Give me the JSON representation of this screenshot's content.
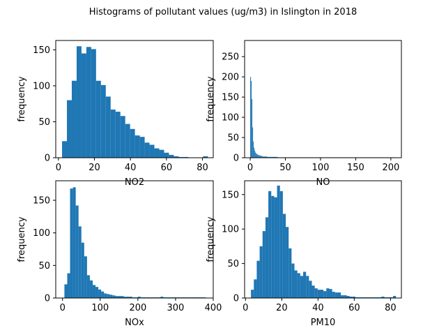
{
  "figure_title": "Histograms of pollutant values (ug/m3) in Islington in 2018",
  "chart_data": [
    {
      "type": "bar",
      "subtype": "histogram",
      "xlabel": "NO2",
      "ylabel": "frequency",
      "xlim": [
        -1.5,
        86
      ],
      "ylim": [
        0,
        163
      ],
      "xticks": [
        0,
        20,
        40,
        60,
        80
      ],
      "yticks": [
        0,
        50,
        100,
        150
      ],
      "bin_edges": [
        2,
        4.7,
        7.4,
        10.1,
        12.8,
        15.5,
        18.2,
        20.9,
        23.6,
        26.3,
        29,
        31.7,
        34.4,
        37.1,
        39.8,
        42.5,
        45.2,
        47.9,
        50.6,
        53.3,
        56,
        58.7,
        61.4,
        64.1,
        66.8,
        69.5,
        72.2,
        74.9,
        77.6,
        80.3,
        83
      ],
      "values": [
        23,
        80,
        107,
        155,
        145,
        154,
        151,
        107,
        101,
        85,
        67,
        64,
        58,
        47,
        40,
        31,
        29,
        21,
        18,
        13,
        11,
        7,
        4,
        2,
        1,
        1,
        0,
        0,
        0,
        2
      ]
    },
    {
      "type": "bar",
      "subtype": "histogram",
      "xlabel": "NO",
      "ylabel": "frequency",
      "xlim": [
        -8,
        215
      ],
      "ylim": [
        0,
        290
      ],
      "xticks": [
        0,
        50,
        100,
        150,
        200
      ],
      "yticks": [
        0,
        50,
        100,
        150,
        200,
        250
      ],
      "bin_edges": [
        0,
        1,
        2,
        3,
        4,
        5,
        6,
        7,
        8,
        9,
        10,
        11,
        12,
        13,
        14,
        15,
        16,
        17,
        18,
        19,
        20,
        22,
        24,
        26,
        28,
        30,
        33,
        36,
        39,
        42,
        45,
        50,
        55,
        60,
        65,
        70,
        78,
        86,
        94,
        102,
        110,
        120,
        130,
        140,
        150,
        160,
        170,
        180,
        190,
        200,
        207
      ],
      "values": [
        200,
        190,
        145,
        75,
        40,
        25,
        18,
        13,
        11,
        9,
        8,
        7,
        6,
        6,
        5,
        5,
        4,
        4,
        3,
        3,
        3,
        3,
        2,
        2,
        2,
        2,
        2,
        2,
        1,
        1,
        1,
        1,
        1,
        1,
        1,
        1,
        1,
        1,
        1,
        1,
        1,
        1,
        1,
        1,
        1,
        1,
        1,
        1,
        1,
        1
      ]
    },
    {
      "type": "bar",
      "subtype": "histogram",
      "xlabel": "NOx",
      "ylabel": "frequency",
      "xlim": [
        -18,
        400
      ],
      "ylim": [
        0,
        180
      ],
      "xticks": [
        0,
        100,
        200,
        300,
        400
      ],
      "yticks": [
        0,
        50,
        100,
        150
      ],
      "bin_edges": [
        5,
        12.5,
        20,
        27.5,
        35,
        42.5,
        50,
        57.5,
        65,
        72.5,
        80,
        87.5,
        95,
        102.5,
        110,
        117.5,
        125,
        132.5,
        140,
        147.5,
        155,
        162.5,
        170,
        177.5,
        185,
        192.5,
        200,
        207.5,
        215,
        222.5,
        230,
        237.5,
        245,
        252.5,
        260,
        267.5,
        275,
        282.5,
        290,
        297.5,
        305,
        312.5,
        320,
        327.5,
        335,
        342.5,
        350,
        357.5,
        365,
        372.5,
        380
      ],
      "values": [
        21,
        38,
        168,
        170,
        142,
        110,
        85,
        64,
        35,
        27,
        20,
        17,
        13,
        10,
        7,
        6,
        5,
        4,
        3,
        3,
        3,
        2,
        2,
        2,
        1,
        1,
        2,
        1,
        1,
        1,
        1,
        1,
        1,
        1,
        2,
        1,
        1,
        1,
        1,
        1,
        1,
        1,
        1,
        1,
        1,
        1,
        1,
        1,
        1,
        1
      ]
    },
    {
      "type": "bar",
      "subtype": "histogram",
      "xlabel": "PM10",
      "ylabel": "frequency",
      "xlim": [
        -0.5,
        86
      ],
      "ylim": [
        0,
        170
      ],
      "xticks": [
        0,
        20,
        40,
        60,
        80
      ],
      "yticks": [
        0,
        50,
        100,
        150
      ],
      "bin_edges": [
        3,
        4.6,
        6.2,
        7.8,
        9.4,
        11,
        12.6,
        14.2,
        15.8,
        17.4,
        19,
        20.6,
        22.2,
        23.8,
        25.4,
        27,
        28.6,
        30.2,
        31.8,
        33.4,
        35,
        36.6,
        38.2,
        39.8,
        41.4,
        43,
        44.6,
        46.2,
        47.8,
        49.4,
        51,
        52.6,
        54.2,
        55.8,
        57.4,
        59,
        60.6,
        62.2,
        63.8,
        65.4,
        67,
        68.6,
        70.2,
        71.8,
        73.4,
        75,
        76.6,
        78.2,
        79.8,
        81.4,
        83
      ],
      "values": [
        12,
        27,
        54,
        75,
        97,
        117,
        155,
        148,
        146,
        163,
        155,
        122,
        103,
        72,
        50,
        40,
        36,
        32,
        38,
        32,
        25,
        18,
        14,
        12,
        12,
        10,
        14,
        13,
        9,
        8,
        8,
        4,
        4,
        3,
        2,
        2,
        1,
        1,
        1,
        1,
        1,
        1,
        1,
        1,
        1,
        2,
        1,
        1,
        1,
        3
      ]
    }
  ]
}
